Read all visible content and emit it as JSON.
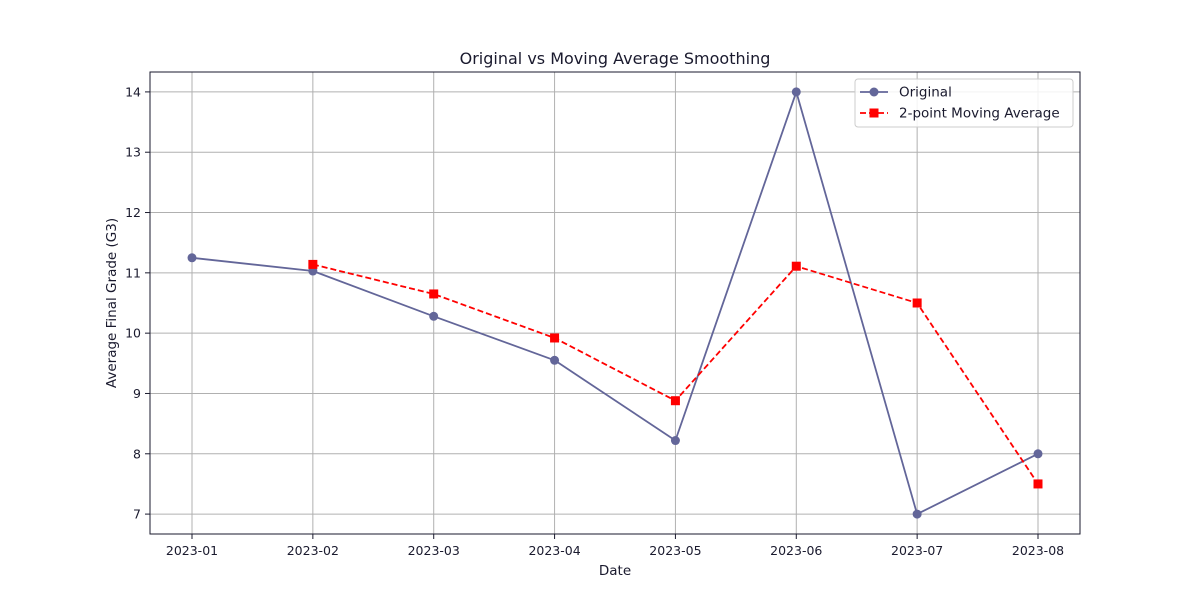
{
  "chart_data": {
    "type": "line",
    "title": "Original vs Moving Average Smoothing",
    "xlabel": "Date",
    "ylabel": "Average Final Grade (G3)",
    "x": [
      "2023-01",
      "2023-02",
      "2023-03",
      "2023-04",
      "2023-05",
      "2023-06",
      "2023-07",
      "2023-08"
    ],
    "ylim": [
      6.67,
      14.33
    ],
    "yticks": [
      7,
      8,
      9,
      10,
      11,
      12,
      13,
      14
    ],
    "grid": true,
    "legend_position": "top-right",
    "series": [
      {
        "name": "Original",
        "color": "#636699",
        "line_style": "solid",
        "marker": "circle",
        "values": [
          11.25,
          11.03,
          10.28,
          9.55,
          8.22,
          14.0,
          7.0,
          8.0
        ]
      },
      {
        "name": "2-point Moving Average",
        "color": "#ff0000",
        "line_style": "dashed",
        "marker": "square",
        "values": [
          null,
          11.14,
          10.65,
          9.92,
          8.88,
          11.11,
          10.5,
          7.5
        ]
      }
    ]
  }
}
